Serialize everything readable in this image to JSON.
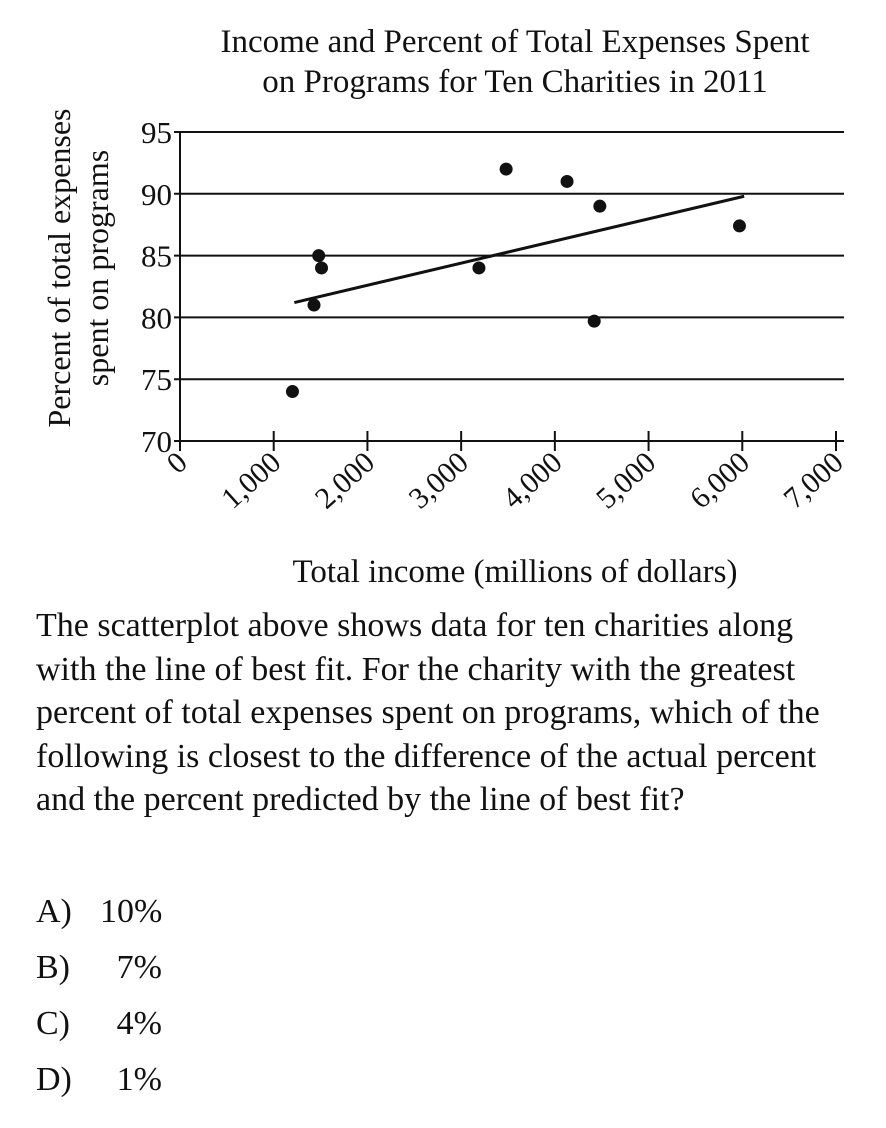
{
  "chart_data": {
    "type": "scatter",
    "title": "Income and Percent of Total Expenses Spent on Programs for Ten Charities in 2011",
    "title_lines": [
      "Income and Percent of Total Expenses Spent",
      "on Programs for Ten Charities in 2011"
    ],
    "xlabel": "Total income (millions of dollars)",
    "ylabel": "Percent of total expenses spent on programs",
    "ylabel_lines": [
      "Percent of total expenses",
      "spent on programs"
    ],
    "xlim": [
      0,
      7000
    ],
    "ylim": [
      70,
      95
    ],
    "x_ticks": [
      0,
      1000,
      2000,
      3000,
      4000,
      5000,
      6000,
      7000
    ],
    "x_tick_labels": [
      "0",
      "1,000",
      "2,000",
      "3,000",
      "4,000",
      "5,000",
      "6,000",
      "7,000"
    ],
    "y_ticks": [
      70,
      75,
      80,
      85,
      90,
      95
    ],
    "y_tick_labels": [
      "70",
      "75",
      "80",
      "85",
      "90",
      "95"
    ],
    "grid": "horizontal",
    "points": [
      {
        "x": 1200,
        "y": 74
      },
      {
        "x": 1430,
        "y": 81
      },
      {
        "x": 1480,
        "y": 85
      },
      {
        "x": 1510,
        "y": 84
      },
      {
        "x": 3190,
        "y": 84
      },
      {
        "x": 3480,
        "y": 92
      },
      {
        "x": 4130,
        "y": 91
      },
      {
        "x": 4420,
        "y": 79.7
      },
      {
        "x": 4480,
        "y": 89
      },
      {
        "x": 5970,
        "y": 87.4
      }
    ],
    "best_fit_line": {
      "x": [
        1220,
        6020
      ],
      "y": [
        81.2,
        89.8
      ]
    }
  },
  "question": {
    "text": "The scatterplot above shows data for ten charities along with the line of best fit. For the charity with the greatest percent of total expenses spent on programs, which of the following is closest to the difference of the actual percent and the percent predicted by the line of best fit?"
  },
  "choices": [
    {
      "letter": "A)",
      "value": "10%"
    },
    {
      "letter": "B)",
      "value": "7%"
    },
    {
      "letter": "C)",
      "value": "4%"
    },
    {
      "letter": "D)",
      "value": "1%"
    }
  ]
}
